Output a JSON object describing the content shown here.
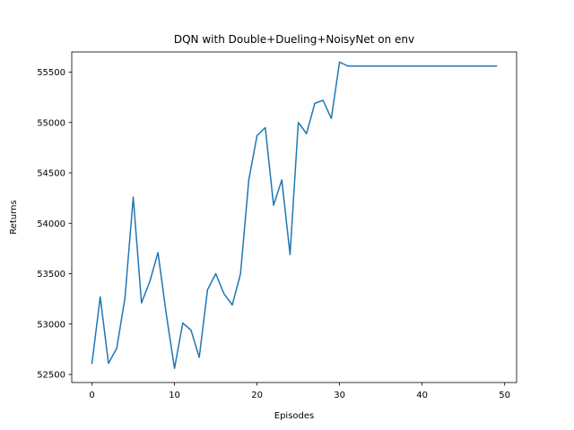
{
  "chart_data": {
    "type": "line",
    "title": "DQN with Double+Dueling+NoisyNet on env",
    "xlabel": "Episodes",
    "ylabel": "Returns",
    "xlim": [
      -2.45,
      51.45
    ],
    "ylim": [
      52420,
      55700
    ],
    "xticks": [
      0,
      10,
      20,
      30,
      40,
      50
    ],
    "yticks": [
      52500,
      53000,
      53500,
      54000,
      54500,
      55000,
      55500
    ],
    "grid": false,
    "series": [
      {
        "color": "#1f77b4",
        "x": [
          0,
          1,
          2,
          3,
          4,
          5,
          6,
          7,
          8,
          9,
          10,
          11,
          12,
          13,
          14,
          15,
          16,
          17,
          18,
          19,
          20,
          21,
          22,
          23,
          24,
          25,
          26,
          27,
          28,
          29,
          30,
          31,
          32,
          33,
          34,
          35,
          36,
          37,
          38,
          39,
          40,
          41,
          42,
          43,
          44,
          45,
          46,
          47,
          48,
          49
        ],
        "values": [
          52610,
          53270,
          52610,
          52760,
          53260,
          54260,
          53210,
          53420,
          53710,
          53100,
          52560,
          53010,
          52940,
          52670,
          53340,
          53500,
          53300,
          53190,
          53500,
          54430,
          54870,
          54950,
          54180,
          54430,
          53690,
          55000,
          54890,
          55190,
          55220,
          55040,
          55600,
          55560,
          55560,
          55560,
          55560,
          55560,
          55560,
          55560,
          55560,
          55560,
          55560,
          55560,
          55560,
          55560,
          55560,
          55560,
          55560,
          55560,
          55560,
          55560
        ]
      }
    ]
  }
}
